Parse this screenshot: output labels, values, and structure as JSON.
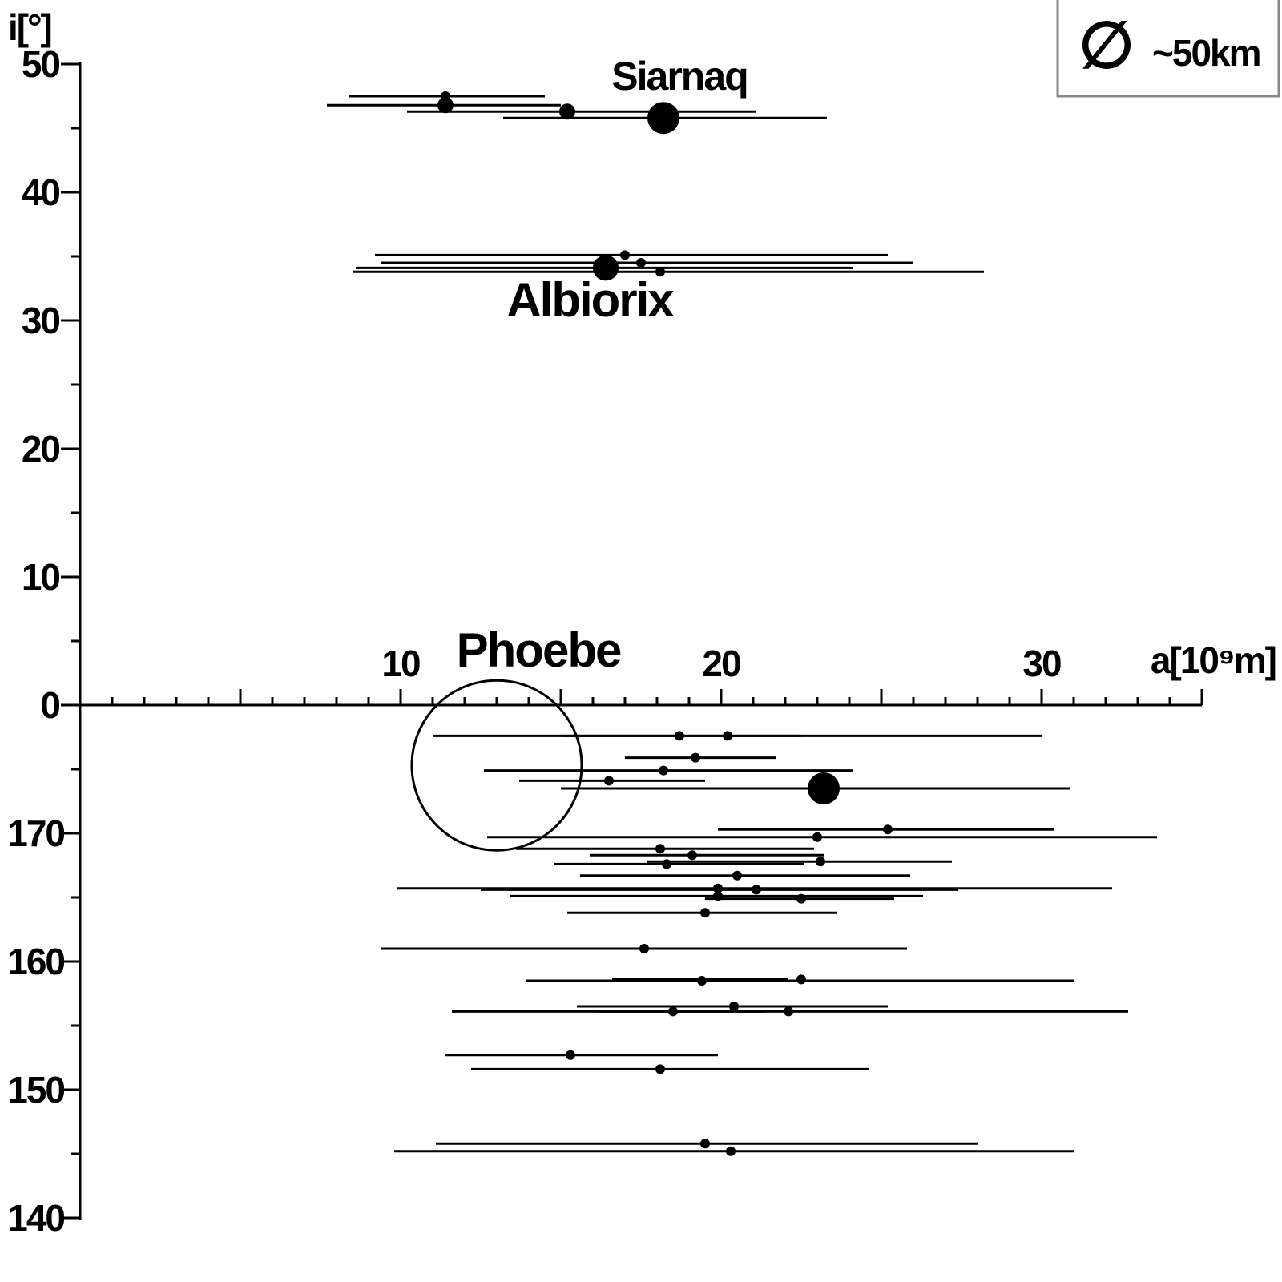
{
  "chart_data": {
    "type": "scatter",
    "title": "",
    "xlabel": "a[10⁹m]",
    "ylabel": "i[°]",
    "x_ticks": [
      "10",
      "20",
      "30"
    ],
    "y_ticks_upper": [
      "50",
      "40",
      "30",
      "20",
      "10",
      "0"
    ],
    "y_ticks_lower": [
      "170",
      "160",
      "150",
      "140"
    ],
    "xlim": [
      0,
      35
    ],
    "ylim_prograde": [
      0,
      50
    ],
    "ylim_retrograde": [
      180,
      140
    ],
    "legend": {
      "symbol": "∅",
      "label": "~50km",
      "placement": "top-right"
    },
    "annotations": [
      {
        "text": "Siarnaq",
        "x": 18.7,
        "y": 48.0
      },
      {
        "text": "Albiorix",
        "x": 15.9,
        "y": 30.3
      },
      {
        "text": "Phoebe",
        "x": 14.3,
        "y": 183.0
      }
    ],
    "phoebe_circle": {
      "x": 13.0,
      "y": 175.3
    },
    "prograde": [
      {
        "x": 11.4,
        "y": 47.5,
        "peri": 8.4,
        "apo": 14.5,
        "size": "small"
      },
      {
        "x": 11.4,
        "y": 46.8,
        "peri": 7.7,
        "apo": 15.0,
        "size": "medium"
      },
      {
        "x": 15.2,
        "y": 46.3,
        "peri": 10.2,
        "apo": 21.1,
        "size": "medium"
      },
      {
        "x": 18.2,
        "y": 45.8,
        "peri": 13.2,
        "apo": 23.3,
        "size": "large"
      },
      {
        "x": 17.0,
        "y": 35.1,
        "peri": 9.2,
        "apo": 25.2,
        "size": "small"
      },
      {
        "x": 17.5,
        "y": 34.5,
        "peri": 9.4,
        "apo": 26.0,
        "size": "small"
      },
      {
        "x": 16.4,
        "y": 34.1,
        "peri": 8.6,
        "apo": 24.1,
        "size": "large"
      },
      {
        "x": 18.1,
        "y": 33.8,
        "peri": 8.5,
        "apo": 28.2,
        "size": "small"
      }
    ],
    "retrograde": [
      {
        "x": 18.7,
        "y": 177.6,
        "peri": 11.0,
        "apo": 30.0,
        "size": "small"
      },
      {
        "x": 20.2,
        "y": 177.6,
        "peri": 15.0,
        "apo": 22.5,
        "size": "small"
      },
      {
        "x": 19.2,
        "y": 175.9,
        "peri": 17.0,
        "apo": 21.7,
        "size": "small"
      },
      {
        "x": 18.2,
        "y": 174.9,
        "peri": 12.6,
        "apo": 24.1,
        "size": "small"
      },
      {
        "x": 16.5,
        "y": 174.1,
        "peri": 13.7,
        "apo": 19.5,
        "size": "small"
      },
      {
        "x": 23.2,
        "y": 173.5,
        "peri": 15.0,
        "apo": 30.9,
        "size": "large"
      },
      {
        "x": 25.2,
        "y": 170.3,
        "peri": 19.9,
        "apo": 30.4,
        "size": "small"
      },
      {
        "x": 23.0,
        "y": 169.7,
        "peri": 12.7,
        "apo": 33.6,
        "size": "small"
      },
      {
        "x": 18.1,
        "y": 168.8,
        "peri": 13.6,
        "apo": 22.9,
        "size": "small"
      },
      {
        "x": 19.1,
        "y": 168.3,
        "peri": 15.9,
        "apo": 23.2,
        "size": "small"
      },
      {
        "x": 23.1,
        "y": 167.8,
        "peri": 17.7,
        "apo": 27.2,
        "size": "small"
      },
      {
        "x": 18.3,
        "y": 167.6,
        "peri": 14.8,
        "apo": 22.6,
        "size": "small"
      },
      {
        "x": 20.5,
        "y": 166.7,
        "peri": 15.6,
        "apo": 25.9,
        "size": "small"
      },
      {
        "x": 19.9,
        "y": 165.7,
        "peri": 9.9,
        "apo": 32.2,
        "size": "small"
      },
      {
        "x": 21.1,
        "y": 165.6,
        "peri": 12.5,
        "apo": 27.4,
        "size": "small"
      },
      {
        "x": 19.9,
        "y": 165.1,
        "peri": 13.4,
        "apo": 26.3,
        "size": "small"
      },
      {
        "x": 22.5,
        "y": 164.9,
        "peri": 19.5,
        "apo": 25.4,
        "size": "small"
      },
      {
        "x": 19.5,
        "y": 163.8,
        "peri": 15.2,
        "apo": 23.6,
        "size": "small"
      },
      {
        "x": 17.6,
        "y": 161.0,
        "peri": 9.4,
        "apo": 25.8,
        "size": "small"
      },
      {
        "x": 19.4,
        "y": 158.5,
        "peri": 13.9,
        "apo": 31.0,
        "size": "small"
      },
      {
        "x": 22.5,
        "y": 158.6,
        "peri": 16.6,
        "apo": 22.1,
        "size": "small"
      },
      {
        "x": 20.4,
        "y": 156.5,
        "peri": 15.5,
        "apo": 25.2,
        "size": "small"
      },
      {
        "x": 18.5,
        "y": 156.1,
        "peri": 11.6,
        "apo": 32.7,
        "size": "small"
      },
      {
        "x": 22.1,
        "y": 156.1,
        "peri": 16.2,
        "apo": 21.3,
        "size": "small"
      },
      {
        "x": 15.3,
        "y": 152.7,
        "peri": 11.4,
        "apo": 19.9,
        "size": "small"
      },
      {
        "x": 18.1,
        "y": 151.6,
        "peri": 12.2,
        "apo": 24.6,
        "size": "small"
      },
      {
        "x": 19.5,
        "y": 145.8,
        "peri": 11.1,
        "apo": 28.0,
        "size": "small"
      },
      {
        "x": 20.3,
        "y": 145.2,
        "peri": 9.8,
        "apo": 31.0,
        "size": "small"
      }
    ]
  }
}
